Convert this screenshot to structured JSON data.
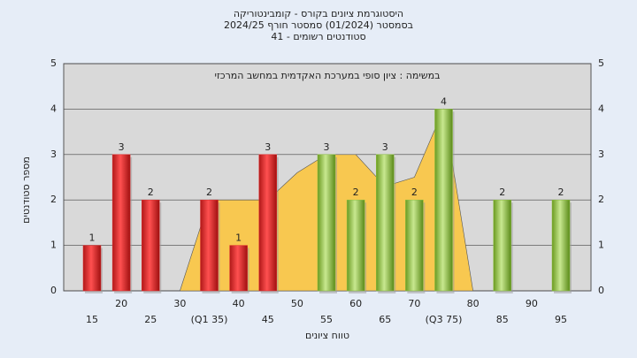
{
  "chart_data": {
    "type": "bar",
    "title": "היסטוגרמת ציונים בקורס - קומבינטוריקה",
    "subtitle": "בסמסטר  (01/2024)  סמסטר חורף 2024/25",
    "subtitle2": "41 - סטודנטים רשומים",
    "annotation": "במשימה : ציון סופי במערכת האקדמית במחשב המרכזי",
    "x_label": "טווח ציונים",
    "y_label": "מספר סטודנטים",
    "categories": [
      "15",
      "20",
      "25",
      "30",
      "(Q1 35)",
      "40",
      "45",
      "50",
      "55",
      "60",
      "65",
      "70",
      "(Q3 75)",
      "80",
      "85",
      "90",
      "95"
    ],
    "values": [
      1,
      3,
      2,
      0,
      2,
      1,
      3,
      0,
      3,
      2,
      3,
      2,
      4,
      0,
      2,
      0,
      2
    ],
    "colors": [
      "#e03030",
      "#e03030",
      "#e03030",
      "#e03030",
      "#e03030",
      "#e03030",
      "#e03030",
      "#e03030",
      "#8cc040",
      "#8cc040",
      "#8cc040",
      "#8cc040",
      "#8cc040",
      "#8cc040",
      "#8cc040",
      "#8cc040",
      "#8cc040"
    ],
    "area_values": [
      null,
      null,
      null,
      0,
      2,
      2,
      2,
      2.6,
      3,
      3,
      2.3,
      2.5,
      4,
      0,
      null,
      null,
      null
    ],
    "area_color": "#f8c850",
    "ylim": [
      0,
      5
    ],
    "yticks": [
      0,
      1,
      2,
      3,
      4,
      5
    ],
    "grid": true
  }
}
